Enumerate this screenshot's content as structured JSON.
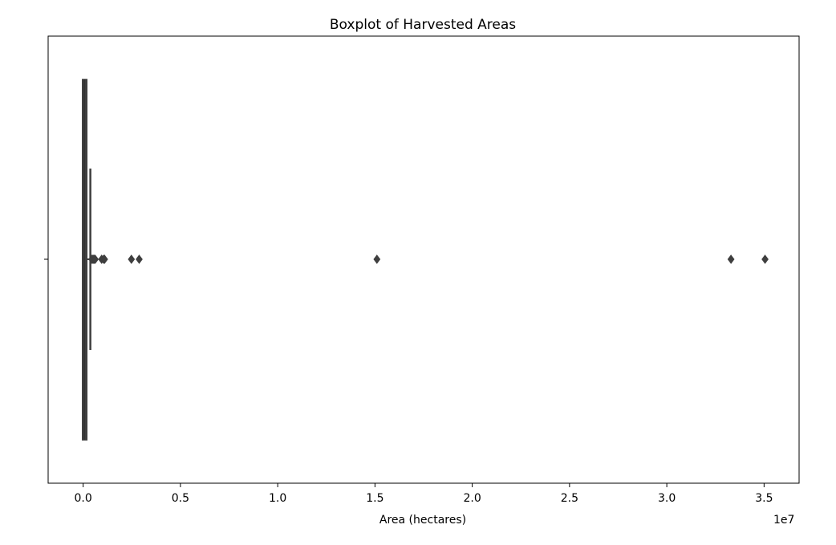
{
  "chart_data": {
    "type": "boxplot",
    "orientation": "horizontal",
    "title": "Boxplot of Harvested Areas",
    "xlabel": "Area (hectares)",
    "ylabel": "",
    "x_offset_label": "1e7",
    "xlim": [
      -1800000,
      36800000
    ],
    "x_ticks": [
      0,
      5000000,
      10000000,
      15000000,
      20000000,
      25000000,
      30000000,
      35000000
    ],
    "x_tick_labels": [
      "0.0",
      "0.5",
      "1.0",
      "1.5",
      "2.0",
      "2.5",
      "3.0",
      "3.5"
    ],
    "grid": false,
    "box": {
      "whisker_low": 0,
      "q1": 5000,
      "median": 60000,
      "q3": 150000,
      "whisker_high": 370000
    },
    "outliers": [
      450000,
      500000,
      540000,
      580000,
      620000,
      950000,
      1050000,
      1100000,
      2480000,
      2880000,
      15100000,
      33300000,
      35050000
    ],
    "color": "#3f3f3f"
  }
}
